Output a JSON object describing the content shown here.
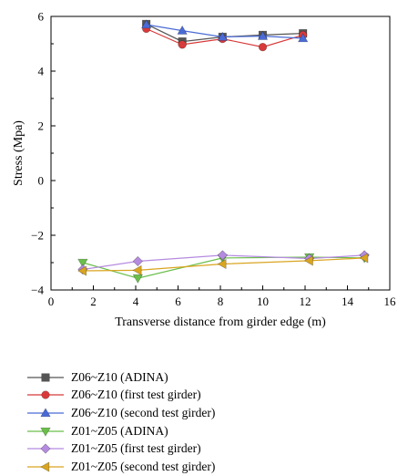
{
  "chart_data": {
    "type": "line",
    "title": "",
    "xlabel": "Transverse distance from girder edge (m)",
    "ylabel": "Stress (Mpa)",
    "xlim": [
      0,
      16
    ],
    "ylim": [
      -4,
      6
    ],
    "xticks": [
      0,
      2,
      4,
      6,
      8,
      10,
      12,
      14,
      16
    ],
    "yticks": [
      -4,
      -2,
      0,
      2,
      4,
      6
    ],
    "yticklabels": [
      "−4",
      "−2",
      "0",
      "2",
      "4",
      "6"
    ],
    "grid": false,
    "legend_position": "bottom",
    "series": [
      {
        "name": "Z06~Z10 (ADINA)",
        "color": "#555555",
        "marker": "square",
        "x": [
          4.5,
          6.2,
          8.1,
          10.0,
          11.9
        ],
        "y": [
          5.72,
          5.08,
          5.25,
          5.32,
          5.38
        ]
      },
      {
        "name": "Z06~Z10 (first test girder)",
        "color": "#d83a3a",
        "marker": "circle",
        "x": [
          4.5,
          6.2,
          8.1,
          10.0,
          11.9
        ],
        "y": [
          5.55,
          4.97,
          5.18,
          4.88,
          5.32
        ]
      },
      {
        "name": "Z06~Z10 (second test girder)",
        "color": "#4a6bd6",
        "marker": "triangle-up",
        "x": [
          4.5,
          6.2,
          8.1,
          10.0,
          11.9
        ],
        "y": [
          5.7,
          5.48,
          5.25,
          5.28,
          5.2
        ]
      },
      {
        "name": "Z01~Z05 (ADINA)",
        "color": "#6abf4b",
        "marker": "triangle-down",
        "x": [
          1.5,
          4.1,
          8.1,
          12.2,
          14.8
        ],
        "y": [
          -3.0,
          -3.57,
          -2.83,
          -2.8,
          -2.83
        ]
      },
      {
        "name": "Z01~Z05 (first test girder)",
        "color": "#b58be0",
        "marker": "diamond",
        "x": [
          1.5,
          4.1,
          8.1,
          12.2,
          14.8
        ],
        "y": [
          -3.25,
          -2.95,
          -2.73,
          -2.85,
          -2.73
        ]
      },
      {
        "name": "Z01~Z05 (second test girder)",
        "color": "#d9a520",
        "marker": "triangle-left",
        "x": [
          1.5,
          4.1,
          8.1,
          12.2,
          14.8
        ],
        "y": [
          -3.3,
          -3.28,
          -3.05,
          -2.93,
          -2.83
        ]
      }
    ]
  }
}
